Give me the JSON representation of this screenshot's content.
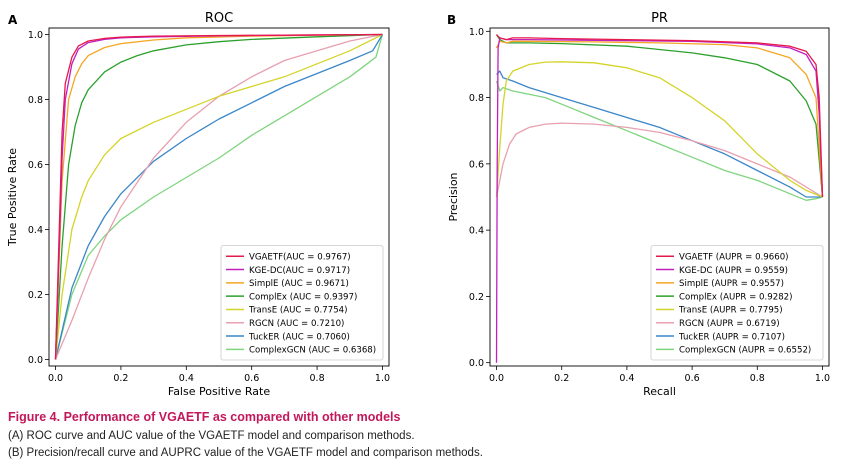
{
  "chart_data": [
    {
      "type": "line",
      "panel_label": "A",
      "title": "ROC",
      "xlabel": "False Positive Rate",
      "ylabel": "True Positive Rate",
      "xlim": [
        -0.02,
        1.02
      ],
      "ylim": [
        -0.02,
        1.02
      ],
      "xticks": [
        "0.0",
        "0.2",
        "0.4",
        "0.6",
        "0.8",
        "1.0"
      ],
      "yticks": [
        "0.0",
        "0.2",
        "0.4",
        "0.6",
        "0.8",
        "1.0"
      ],
      "grid": false,
      "legend_position": "lower-right",
      "series": [
        {
          "name": "VGAETF(AUC = 0.9767)",
          "color": "#e6194b",
          "x": [
            0,
            0.01,
            0.02,
            0.03,
            0.05,
            0.07,
            0.1,
            0.15,
            0.2,
            0.3,
            0.5,
            0.7,
            1.0
          ],
          "y": [
            0,
            0.35,
            0.7,
            0.85,
            0.93,
            0.965,
            0.98,
            0.988,
            0.992,
            0.995,
            0.997,
            0.998,
            1.0
          ]
        },
        {
          "name": "KGE-DC(AUC = 0.9717)",
          "color": "#c020c0",
          "x": [
            0,
            0.01,
            0.02,
            0.03,
            0.05,
            0.07,
            0.1,
            0.15,
            0.2,
            0.3,
            0.5,
            0.7,
            1.0
          ],
          "y": [
            0,
            0.3,
            0.62,
            0.8,
            0.91,
            0.955,
            0.975,
            0.985,
            0.99,
            0.993,
            0.996,
            0.998,
            1.0
          ]
        },
        {
          "name": "SimplE (AUC = 0.9671)",
          "color": "#f5a623",
          "x": [
            0,
            0.02,
            0.04,
            0.06,
            0.08,
            0.1,
            0.15,
            0.2,
            0.3,
            0.4,
            0.6,
            0.8,
            1.0
          ],
          "y": [
            0,
            0.55,
            0.8,
            0.87,
            0.91,
            0.935,
            0.96,
            0.972,
            0.983,
            0.99,
            0.995,
            0.998,
            1.0
          ]
        },
        {
          "name": "ComplEx (AUC = 0.9397)",
          "color": "#2ca02c",
          "x": [
            0,
            0.02,
            0.04,
            0.06,
            0.08,
            0.1,
            0.15,
            0.2,
            0.25,
            0.3,
            0.4,
            0.5,
            0.6,
            0.8,
            1.0
          ],
          "y": [
            0,
            0.35,
            0.6,
            0.72,
            0.79,
            0.83,
            0.885,
            0.915,
            0.935,
            0.95,
            0.968,
            0.978,
            0.985,
            0.993,
            1.0
          ]
        },
        {
          "name": "TransE (AUC = 0.7754)",
          "color": "#d4d42a",
          "x": [
            0,
            0.02,
            0.05,
            0.08,
            0.1,
            0.15,
            0.2,
            0.3,
            0.4,
            0.5,
            0.6,
            0.7,
            0.8,
            0.9,
            1.0
          ],
          "y": [
            0,
            0.2,
            0.4,
            0.5,
            0.55,
            0.63,
            0.68,
            0.73,
            0.77,
            0.81,
            0.84,
            0.87,
            0.91,
            0.95,
            1.0
          ]
        },
        {
          "name": "RGCN (AUC = 0.7210)",
          "color": "#e8a0b0",
          "x": [
            0,
            0.05,
            0.1,
            0.15,
            0.2,
            0.3,
            0.4,
            0.5,
            0.6,
            0.7,
            0.8,
            0.9,
            1.0
          ],
          "y": [
            0,
            0.12,
            0.25,
            0.37,
            0.47,
            0.62,
            0.73,
            0.81,
            0.87,
            0.92,
            0.95,
            0.98,
            1.0
          ]
        },
        {
          "name": "TuckER (AUC = 0.7060)",
          "color": "#3a86c8",
          "x": [
            0,
            0.05,
            0.1,
            0.15,
            0.2,
            0.3,
            0.4,
            0.5,
            0.6,
            0.7,
            0.8,
            0.9,
            0.97,
            1.0
          ],
          "y": [
            0,
            0.22,
            0.35,
            0.44,
            0.51,
            0.61,
            0.68,
            0.74,
            0.79,
            0.84,
            0.88,
            0.92,
            0.95,
            1.0
          ]
        },
        {
          "name": "ComplexGCN (AUC = 0.6368)",
          "color": "#7fd47f",
          "x": [
            0,
            0.05,
            0.1,
            0.15,
            0.2,
            0.3,
            0.4,
            0.5,
            0.6,
            0.7,
            0.8,
            0.9,
            0.98,
            1.0
          ],
          "y": [
            0,
            0.2,
            0.32,
            0.38,
            0.43,
            0.5,
            0.56,
            0.62,
            0.69,
            0.75,
            0.81,
            0.87,
            0.93,
            1.0
          ]
        }
      ]
    },
    {
      "type": "line",
      "panel_label": "B",
      "title": "PR",
      "xlabel": "Recall",
      "ylabel": "Precision",
      "xlim": [
        -0.02,
        1.02
      ],
      "ylim": [
        -0.01,
        1.01
      ],
      "xticks": [
        "0.0",
        "0.2",
        "0.4",
        "0.6",
        "0.8",
        "1.0"
      ],
      "yticks": [
        "0.0",
        "0.2",
        "0.4",
        "0.6",
        "0.8",
        "1.0"
      ],
      "grid": false,
      "legend_position": "lower-right",
      "series": [
        {
          "name": "VGAETF (AUPR = 0.9660)",
          "color": "#e6194b",
          "x": [
            0,
            0.01,
            0.03,
            0.05,
            0.1,
            0.2,
            0.4,
            0.6,
            0.8,
            0.9,
            0.95,
            0.98,
            0.99,
            1.0
          ],
          "y": [
            0.99,
            0.98,
            0.975,
            0.98,
            0.98,
            0.978,
            0.975,
            0.972,
            0.965,
            0.955,
            0.94,
            0.9,
            0.8,
            0.5
          ]
        },
        {
          "name": "KGE-DC (AUPR = 0.9559)",
          "color": "#c020c0",
          "x": [
            0,
            0.002,
            0.005,
            0.01,
            0.03,
            0.1,
            0.3,
            0.6,
            0.8,
            0.9,
            0.95,
            0.98,
            0.99,
            1.0
          ],
          "y": [
            0,
            0.6,
            0.95,
            0.98,
            0.975,
            0.975,
            0.973,
            0.97,
            0.962,
            0.95,
            0.93,
            0.88,
            0.75,
            0.5
          ]
        },
        {
          "name": "SimplE (AUPR = 0.9557)",
          "color": "#f5a623",
          "x": [
            0,
            0.01,
            0.03,
            0.05,
            0.1,
            0.3,
            0.5,
            0.7,
            0.8,
            0.9,
            0.95,
            0.98,
            1.0
          ],
          "y": [
            0.95,
            0.97,
            0.965,
            0.97,
            0.97,
            0.968,
            0.965,
            0.96,
            0.95,
            0.92,
            0.87,
            0.8,
            0.5
          ]
        },
        {
          "name": "ComplEx (AUPR = 0.9282)",
          "color": "#2ca02c",
          "x": [
            0,
            0.01,
            0.03,
            0.1,
            0.2,
            0.4,
            0.6,
            0.7,
            0.8,
            0.9,
            0.95,
            0.98,
            1.0
          ],
          "y": [
            0.99,
            0.975,
            0.965,
            0.965,
            0.963,
            0.955,
            0.935,
            0.92,
            0.9,
            0.85,
            0.79,
            0.72,
            0.5
          ]
        },
        {
          "name": "TransE (AUPR = 0.7795)",
          "color": "#d4d42a",
          "x": [
            0,
            0.01,
            0.02,
            0.03,
            0.05,
            0.1,
            0.15,
            0.2,
            0.3,
            0.4,
            0.5,
            0.6,
            0.7,
            0.8,
            0.9,
            0.95,
            1.0
          ],
          "y": [
            0.5,
            0.65,
            0.78,
            0.85,
            0.88,
            0.9,
            0.907,
            0.908,
            0.905,
            0.89,
            0.86,
            0.8,
            0.73,
            0.63,
            0.55,
            0.52,
            0.5
          ]
        },
        {
          "name": "RGCN (AUPR = 0.6719)",
          "color": "#e8a0b0",
          "x": [
            0,
            0.01,
            0.02,
            0.04,
            0.06,
            0.1,
            0.15,
            0.2,
            0.3,
            0.4,
            0.5,
            0.6,
            0.7,
            0.8,
            0.9,
            1.0
          ],
          "y": [
            0.5,
            0.55,
            0.6,
            0.66,
            0.69,
            0.71,
            0.72,
            0.723,
            0.72,
            0.71,
            0.695,
            0.67,
            0.64,
            0.6,
            0.56,
            0.5
          ]
        },
        {
          "name": "TuckER (AUPR = 0.7107)",
          "color": "#3a86c8",
          "x": [
            0,
            0.01,
            0.02,
            0.05,
            0.1,
            0.2,
            0.3,
            0.4,
            0.5,
            0.6,
            0.7,
            0.8,
            0.9,
            0.95,
            1.0
          ],
          "y": [
            0.87,
            0.88,
            0.86,
            0.85,
            0.83,
            0.8,
            0.77,
            0.74,
            0.71,
            0.67,
            0.63,
            0.58,
            0.53,
            0.5,
            0.5
          ]
        },
        {
          "name": "ComplexGCN (AUPR = 0.6552)",
          "color": "#7fd47f",
          "x": [
            0,
            0.01,
            0.02,
            0.05,
            0.1,
            0.15,
            0.2,
            0.3,
            0.4,
            0.5,
            0.6,
            0.7,
            0.8,
            0.9,
            0.95,
            0.98,
            1.0
          ],
          "y": [
            0.85,
            0.82,
            0.83,
            0.82,
            0.81,
            0.8,
            0.78,
            0.74,
            0.7,
            0.66,
            0.62,
            0.58,
            0.55,
            0.51,
            0.49,
            0.495,
            0.5
          ]
        }
      ]
    }
  ],
  "caption": {
    "title": "Figure 4.  Performance of VGAETF as compared with other models",
    "line_a": "(A) ROC curve and AUC value of the VGAETF model and comparison methods.",
    "line_b": "(B) Precision/recall curve and AUPRC value of the VGAETF model and comparison methods.",
    "title_color": "#c2185b"
  }
}
